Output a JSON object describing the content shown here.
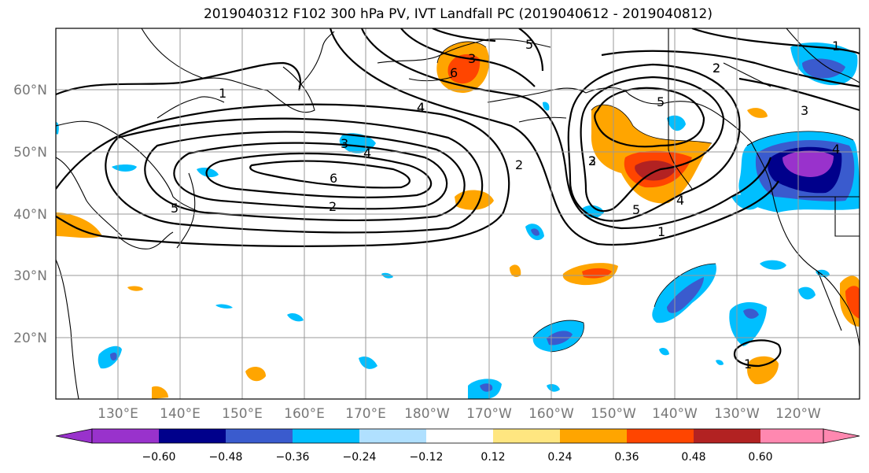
{
  "title": "2019040312 F102 300 hPa PV, IVT Landfall PC (2019040612 - 2019040812)",
  "lon_labels": [
    "130°E",
    "140°E",
    "150°E",
    "160°E",
    "170°E",
    "180°W",
    "170°W",
    "160°W",
    "150°W",
    "140°W",
    "130°W",
    "120°W"
  ],
  "lat_labels": [
    "60°N",
    "50°N",
    "40°N",
    "30°N",
    "20°N"
  ],
  "contour_labels": [
    "1",
    "2",
    "3",
    "4",
    "5",
    "6",
    "5",
    "4",
    "3",
    "2",
    "6",
    "4",
    "3",
    "2",
    "5",
    "4",
    "5",
    "4",
    "3",
    "2",
    "1",
    "2",
    "1",
    "1"
  ],
  "colorbar": {
    "ticks": [
      "−0.60",
      "−0.48",
      "−0.36",
      "−0.24",
      "−0.12",
      "0.12",
      "0.24",
      "0.36",
      "0.48",
      "0.60"
    ],
    "colors": [
      "#9932CC",
      "#00008B",
      "#3A5BCE",
      "#00BFFF",
      "#B0E0FF",
      "#FFFFFF",
      "#FFE680",
      "#FFA500",
      "#FF4500",
      "#B22222",
      "#FF88B0"
    ]
  },
  "palette": {
    "neg1": "#00BFFF",
    "neg2": "#3A5BCE",
    "neg3": "#00008B",
    "neg4": "#9932CC",
    "neg0": "#B0E0FF",
    "pos0": "#FFE680",
    "pos1": "#FFA500",
    "pos2": "#FF4500",
    "pos3": "#B22222"
  }
}
